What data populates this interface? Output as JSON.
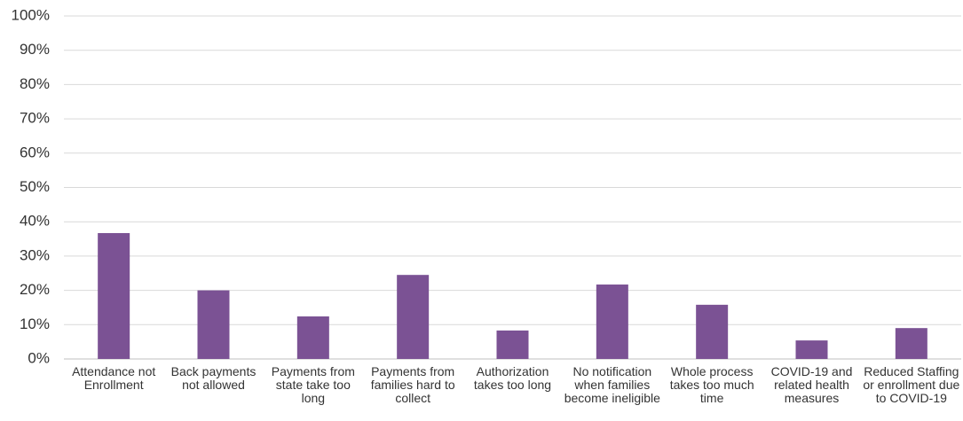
{
  "chart_data": {
    "type": "bar",
    "categories": [
      "Attendance not Enrollment",
      "Back payments not allowed",
      "Payments from state take too long",
      "Payments from families hard to collect",
      "Authorization takes too long",
      "No notification when families become ineligible",
      "Whole process takes too much time",
      "COVID-19 and related health measures",
      "Reduced Staffing or enrollment due to COVID-19"
    ],
    "values": [
      36.7,
      20,
      12.4,
      24.5,
      8.3,
      21.7,
      15.8,
      5.4,
      9.0
    ],
    "color": "#7b5294",
    "ylim": [
      0,
      100
    ],
    "yticks": [
      {
        "value": 0,
        "label": "0%"
      },
      {
        "value": 10,
        "label": "10%"
      },
      {
        "value": 20,
        "label": "20%"
      },
      {
        "value": 30,
        "label": "30%"
      },
      {
        "value": 40,
        "label": "40%"
      },
      {
        "value": 50,
        "label": "50%"
      },
      {
        "value": 60,
        "label": "60%"
      },
      {
        "value": 70,
        "label": "70%"
      },
      {
        "value": 80,
        "label": "80%"
      },
      {
        "value": 90,
        "label": "90%"
      },
      {
        "value": 100,
        "label": "100%"
      }
    ],
    "grid": true
  }
}
